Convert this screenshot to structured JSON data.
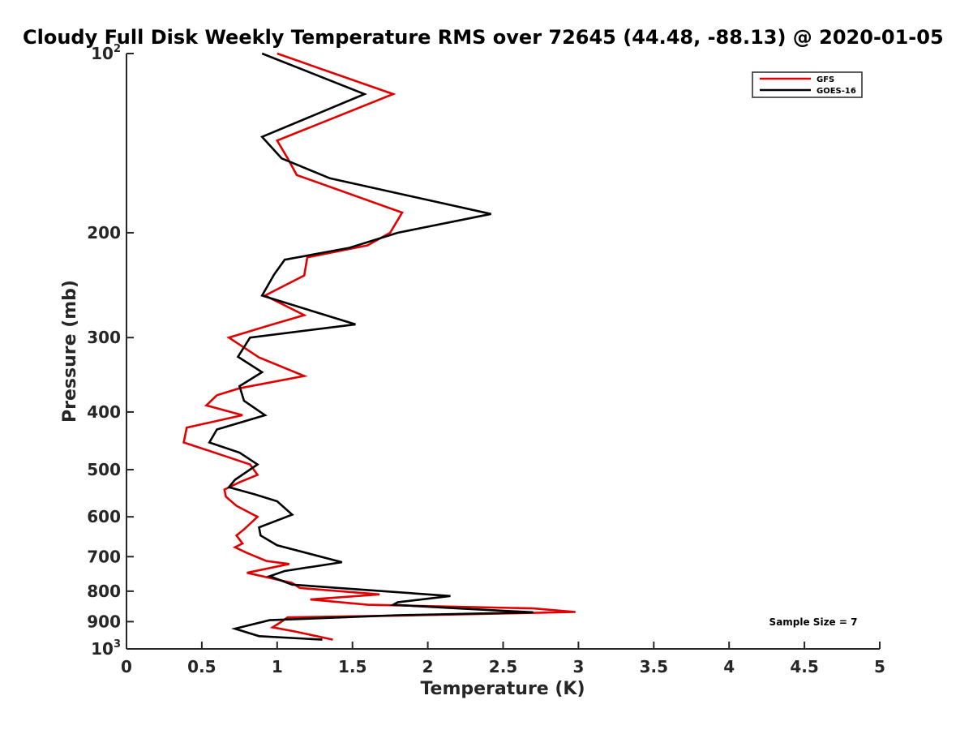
{
  "chart_data": {
    "type": "line",
    "title": "Cloudy Full Disk Weekly Temperature RMS over 72645 (44.48, -88.13) @ 2020-01-05",
    "xlabel": "Temperature (K)",
    "ylabel": "Pressure (mb)",
    "xlim": [
      0,
      5
    ],
    "ylim": [
      100,
      1000
    ],
    "yscale": "log",
    "y_reversed": true,
    "grid": false,
    "legend_position": "top-right",
    "x_ticks": [
      {
        "value": 0,
        "label": "0"
      },
      {
        "value": 0.5,
        "label": "0.5"
      },
      {
        "value": 1,
        "label": "1"
      },
      {
        "value": 1.5,
        "label": "1.5"
      },
      {
        "value": 2,
        "label": "2"
      },
      {
        "value": 2.5,
        "label": "2.5"
      },
      {
        "value": 3,
        "label": "3"
      },
      {
        "value": 3.5,
        "label": "3.5"
      },
      {
        "value": 4,
        "label": "4"
      },
      {
        "value": 4.5,
        "label": "4.5"
      },
      {
        "value": 5,
        "label": "5"
      }
    ],
    "y_ticks": [
      {
        "value": 100,
        "base": "10",
        "exp": "2"
      },
      {
        "value": 200,
        "base": "200",
        "exp": ""
      },
      {
        "value": 300,
        "base": "300",
        "exp": ""
      },
      {
        "value": 400,
        "base": "400",
        "exp": ""
      },
      {
        "value": 500,
        "base": "500",
        "exp": ""
      },
      {
        "value": 600,
        "base": "600",
        "exp": ""
      },
      {
        "value": 700,
        "base": "700",
        "exp": ""
      },
      {
        "value": 800,
        "base": "800",
        "exp": ""
      },
      {
        "value": 900,
        "base": "900",
        "exp": ""
      },
      {
        "value": 1000,
        "base": "10",
        "exp": "3"
      }
    ],
    "annotation": "Sample Size = 7",
    "series": [
      {
        "name": "GFS",
        "color": "#e00000",
        "points": [
          [
            1.0,
            100
          ],
          [
            1.77,
            117
          ],
          [
            1.0,
            140
          ],
          [
            1.07,
            150
          ],
          [
            1.13,
            160
          ],
          [
            1.83,
            185
          ],
          [
            1.75,
            200
          ],
          [
            1.6,
            210
          ],
          [
            1.2,
            220
          ],
          [
            1.18,
            236
          ],
          [
            0.92,
            255
          ],
          [
            1.18,
            275
          ],
          [
            0.93,
            287
          ],
          [
            0.68,
            300
          ],
          [
            0.88,
            324
          ],
          [
            1.18,
            348
          ],
          [
            0.75,
            365
          ],
          [
            0.6,
            375
          ],
          [
            0.53,
            390
          ],
          [
            0.77,
            405
          ],
          [
            0.4,
            425
          ],
          [
            0.38,
            450
          ],
          [
            0.55,
            465
          ],
          [
            0.66,
            475
          ],
          [
            0.82,
            490
          ],
          [
            0.87,
            510
          ],
          [
            0.75,
            525
          ],
          [
            0.65,
            540
          ],
          [
            0.66,
            555
          ],
          [
            0.73,
            575
          ],
          [
            0.87,
            600
          ],
          [
            0.78,
            630
          ],
          [
            0.73,
            645
          ],
          [
            0.77,
            665
          ],
          [
            0.72,
            675
          ],
          [
            0.8,
            690
          ],
          [
            0.93,
            712
          ],
          [
            1.08,
            720
          ],
          [
            0.8,
            745
          ],
          [
            1.1,
            775
          ],
          [
            1.15,
            790
          ],
          [
            1.68,
            810
          ],
          [
            1.22,
            826
          ],
          [
            1.6,
            843
          ],
          [
            2.7,
            855
          ],
          [
            2.98,
            867
          ],
          [
            1.95,
            878
          ],
          [
            1.07,
            885
          ],
          [
            1.03,
            900
          ],
          [
            0.97,
            920
          ],
          [
            1.12,
            935
          ],
          [
            1.37,
            965
          ]
        ]
      },
      {
        "name": "GOES-16",
        "color": "#000000",
        "points": [
          [
            0.9,
            100
          ],
          [
            1.58,
            117
          ],
          [
            0.9,
            138
          ],
          [
            1.03,
            150
          ],
          [
            1.35,
            162
          ],
          [
            2.42,
            186
          ],
          [
            1.8,
            200
          ],
          [
            1.48,
            212
          ],
          [
            1.05,
            222
          ],
          [
            0.98,
            235
          ],
          [
            0.9,
            255
          ],
          [
            1.52,
            285
          ],
          [
            0.82,
            300
          ],
          [
            0.74,
            323
          ],
          [
            0.9,
            343
          ],
          [
            0.75,
            362
          ],
          [
            0.78,
            383
          ],
          [
            0.92,
            405
          ],
          [
            0.6,
            428
          ],
          [
            0.55,
            450
          ],
          [
            0.75,
            468
          ],
          [
            0.87,
            490
          ],
          [
            0.72,
            520
          ],
          [
            0.68,
            535
          ],
          [
            0.85,
            550
          ],
          [
            1.0,
            565
          ],
          [
            1.1,
            595
          ],
          [
            0.88,
            625
          ],
          [
            0.89,
            645
          ],
          [
            1.0,
            670
          ],
          [
            1.43,
            715
          ],
          [
            1.05,
            740
          ],
          [
            0.95,
            755
          ],
          [
            1.1,
            780
          ],
          [
            2.15,
            815
          ],
          [
            1.8,
            835
          ],
          [
            1.77,
            843
          ],
          [
            2.2,
            855
          ],
          [
            2.7,
            868
          ],
          [
            1.8,
            878
          ],
          [
            0.95,
            895
          ],
          [
            0.72,
            925
          ],
          [
            0.88,
            952
          ],
          [
            1.3,
            965
          ]
        ]
      }
    ]
  }
}
